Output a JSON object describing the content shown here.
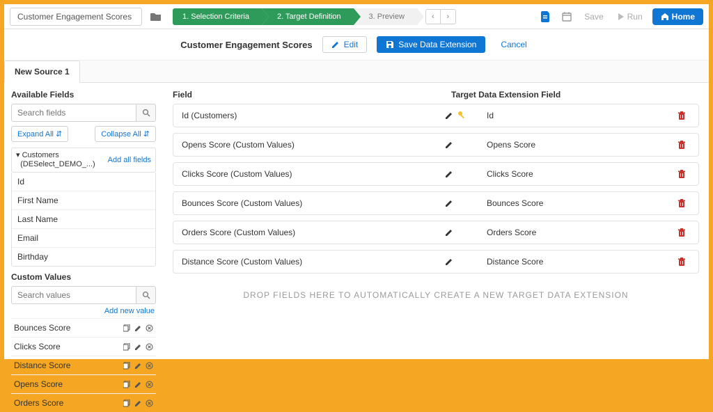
{
  "header": {
    "title": "Customer Engagement Scores",
    "steps": [
      {
        "label": "1. Selection Criteria",
        "active": true
      },
      {
        "label": "2. Target Definition",
        "active": true
      },
      {
        "label": "3. Preview",
        "active": false
      }
    ],
    "save": "Save",
    "run": "Run",
    "home": "Home"
  },
  "subheader": {
    "title": "Customer Engagement Scores",
    "edit": "Edit",
    "save_de": "Save Data Extension",
    "cancel": "Cancel"
  },
  "tab": {
    "label": "New Source 1"
  },
  "sidebar": {
    "available_fields_title": "Available Fields",
    "search_placeholder": "Search fields",
    "expand_all": "Expand All",
    "collapse_all": "Collapse All",
    "source": {
      "name_line1": "Customers",
      "name_line2": "(DESelect_DEMO_...)",
      "add_all": "Add all fields",
      "items": [
        "Id",
        "First Name",
        "Last Name",
        "Email",
        "Birthday"
      ]
    },
    "custom_values": {
      "title": "Custom Values",
      "search_placeholder": "Search values",
      "add_new": "Add new value",
      "items": [
        "Bounces Score",
        "Clicks Score",
        "Distance Score",
        "Opens Score",
        "Orders Score"
      ]
    }
  },
  "panel": {
    "col_field": "Field",
    "col_target": "Target Data Extension Field",
    "rows": [
      {
        "field": "Id (Customers)",
        "target": "Id",
        "key": true
      },
      {
        "field": "Opens Score (Custom Values)",
        "target": "Opens Score",
        "key": false
      },
      {
        "field": "Clicks Score (Custom Values)",
        "target": "Clicks Score",
        "key": false
      },
      {
        "field": "Bounces Score (Custom Values)",
        "target": "Bounces Score",
        "key": false
      },
      {
        "field": "Orders Score (Custom Values)",
        "target": "Orders Score",
        "key": false
      },
      {
        "field": "Distance Score (Custom Values)",
        "target": "Distance Score",
        "key": false
      }
    ],
    "dropzone": "Drop fields here to automatically create a new target data extension"
  },
  "colors": {
    "accent": "#1076d3",
    "green": "#2e9b5b",
    "danger": "#c9302c",
    "frame": "#f5a623"
  }
}
